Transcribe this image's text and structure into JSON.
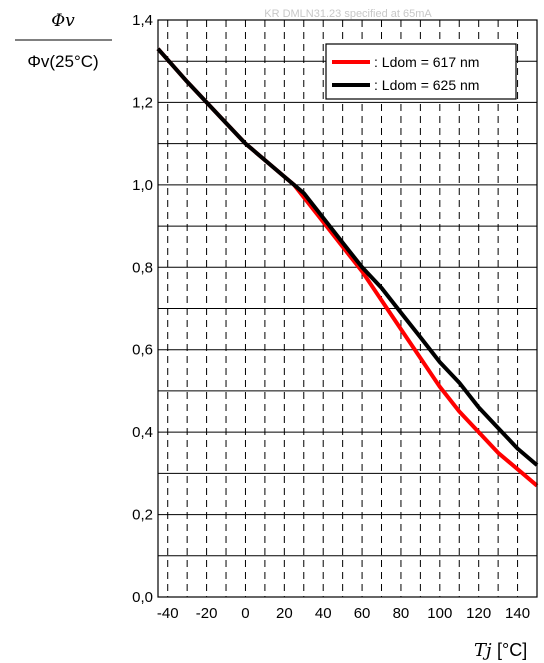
{
  "chart_data": {
    "type": "line",
    "title": "KR DMLN31.23 specified at 65mA",
    "ylabel_top": "Φv",
    "ylabel_bottom": "Φv(25°C)",
    "xlabel_symbol": "Tj",
    "xlabel_unit": "[°C]",
    "xlim": [
      -45,
      150
    ],
    "ylim": [
      0.0,
      1.4
    ],
    "x_ticks": [
      "-40",
      "-20",
      "0",
      "20",
      "40",
      "60",
      "80",
      "100",
      "120",
      "140"
    ],
    "y_ticks": [
      "0,0",
      "0,2",
      "0,4",
      "0,6",
      "0,8",
      "1,0",
      "1,2",
      "1,4"
    ],
    "grid": true,
    "legend_position": "top-right",
    "colors": {
      "series_617": "#ff0000",
      "series_625": "#000000"
    },
    "series": [
      {
        "name": ": Ldom = 617 nm",
        "x": [
          -45,
          -30,
          -20,
          -10,
          0,
          10,
          20,
          25,
          30,
          40,
          50,
          60,
          70,
          80,
          90,
          100,
          110,
          120,
          130,
          140,
          150
        ],
        "y": [
          1.33,
          1.25,
          1.2,
          1.15,
          1.1,
          1.06,
          1.02,
          1.0,
          0.97,
          0.91,
          0.85,
          0.79,
          0.72,
          0.65,
          0.58,
          0.51,
          0.45,
          0.4,
          0.35,
          0.31,
          0.27
        ]
      },
      {
        "name": ": Ldom = 625 nm",
        "x": [
          -45,
          -30,
          -20,
          -10,
          0,
          10,
          20,
          25,
          30,
          40,
          50,
          60,
          70,
          80,
          90,
          100,
          110,
          120,
          130,
          140,
          150
        ],
        "y": [
          1.33,
          1.25,
          1.2,
          1.15,
          1.1,
          1.06,
          1.02,
          1.0,
          0.98,
          0.92,
          0.86,
          0.8,
          0.75,
          0.69,
          0.63,
          0.57,
          0.52,
          0.46,
          0.41,
          0.36,
          0.32
        ]
      }
    ]
  }
}
